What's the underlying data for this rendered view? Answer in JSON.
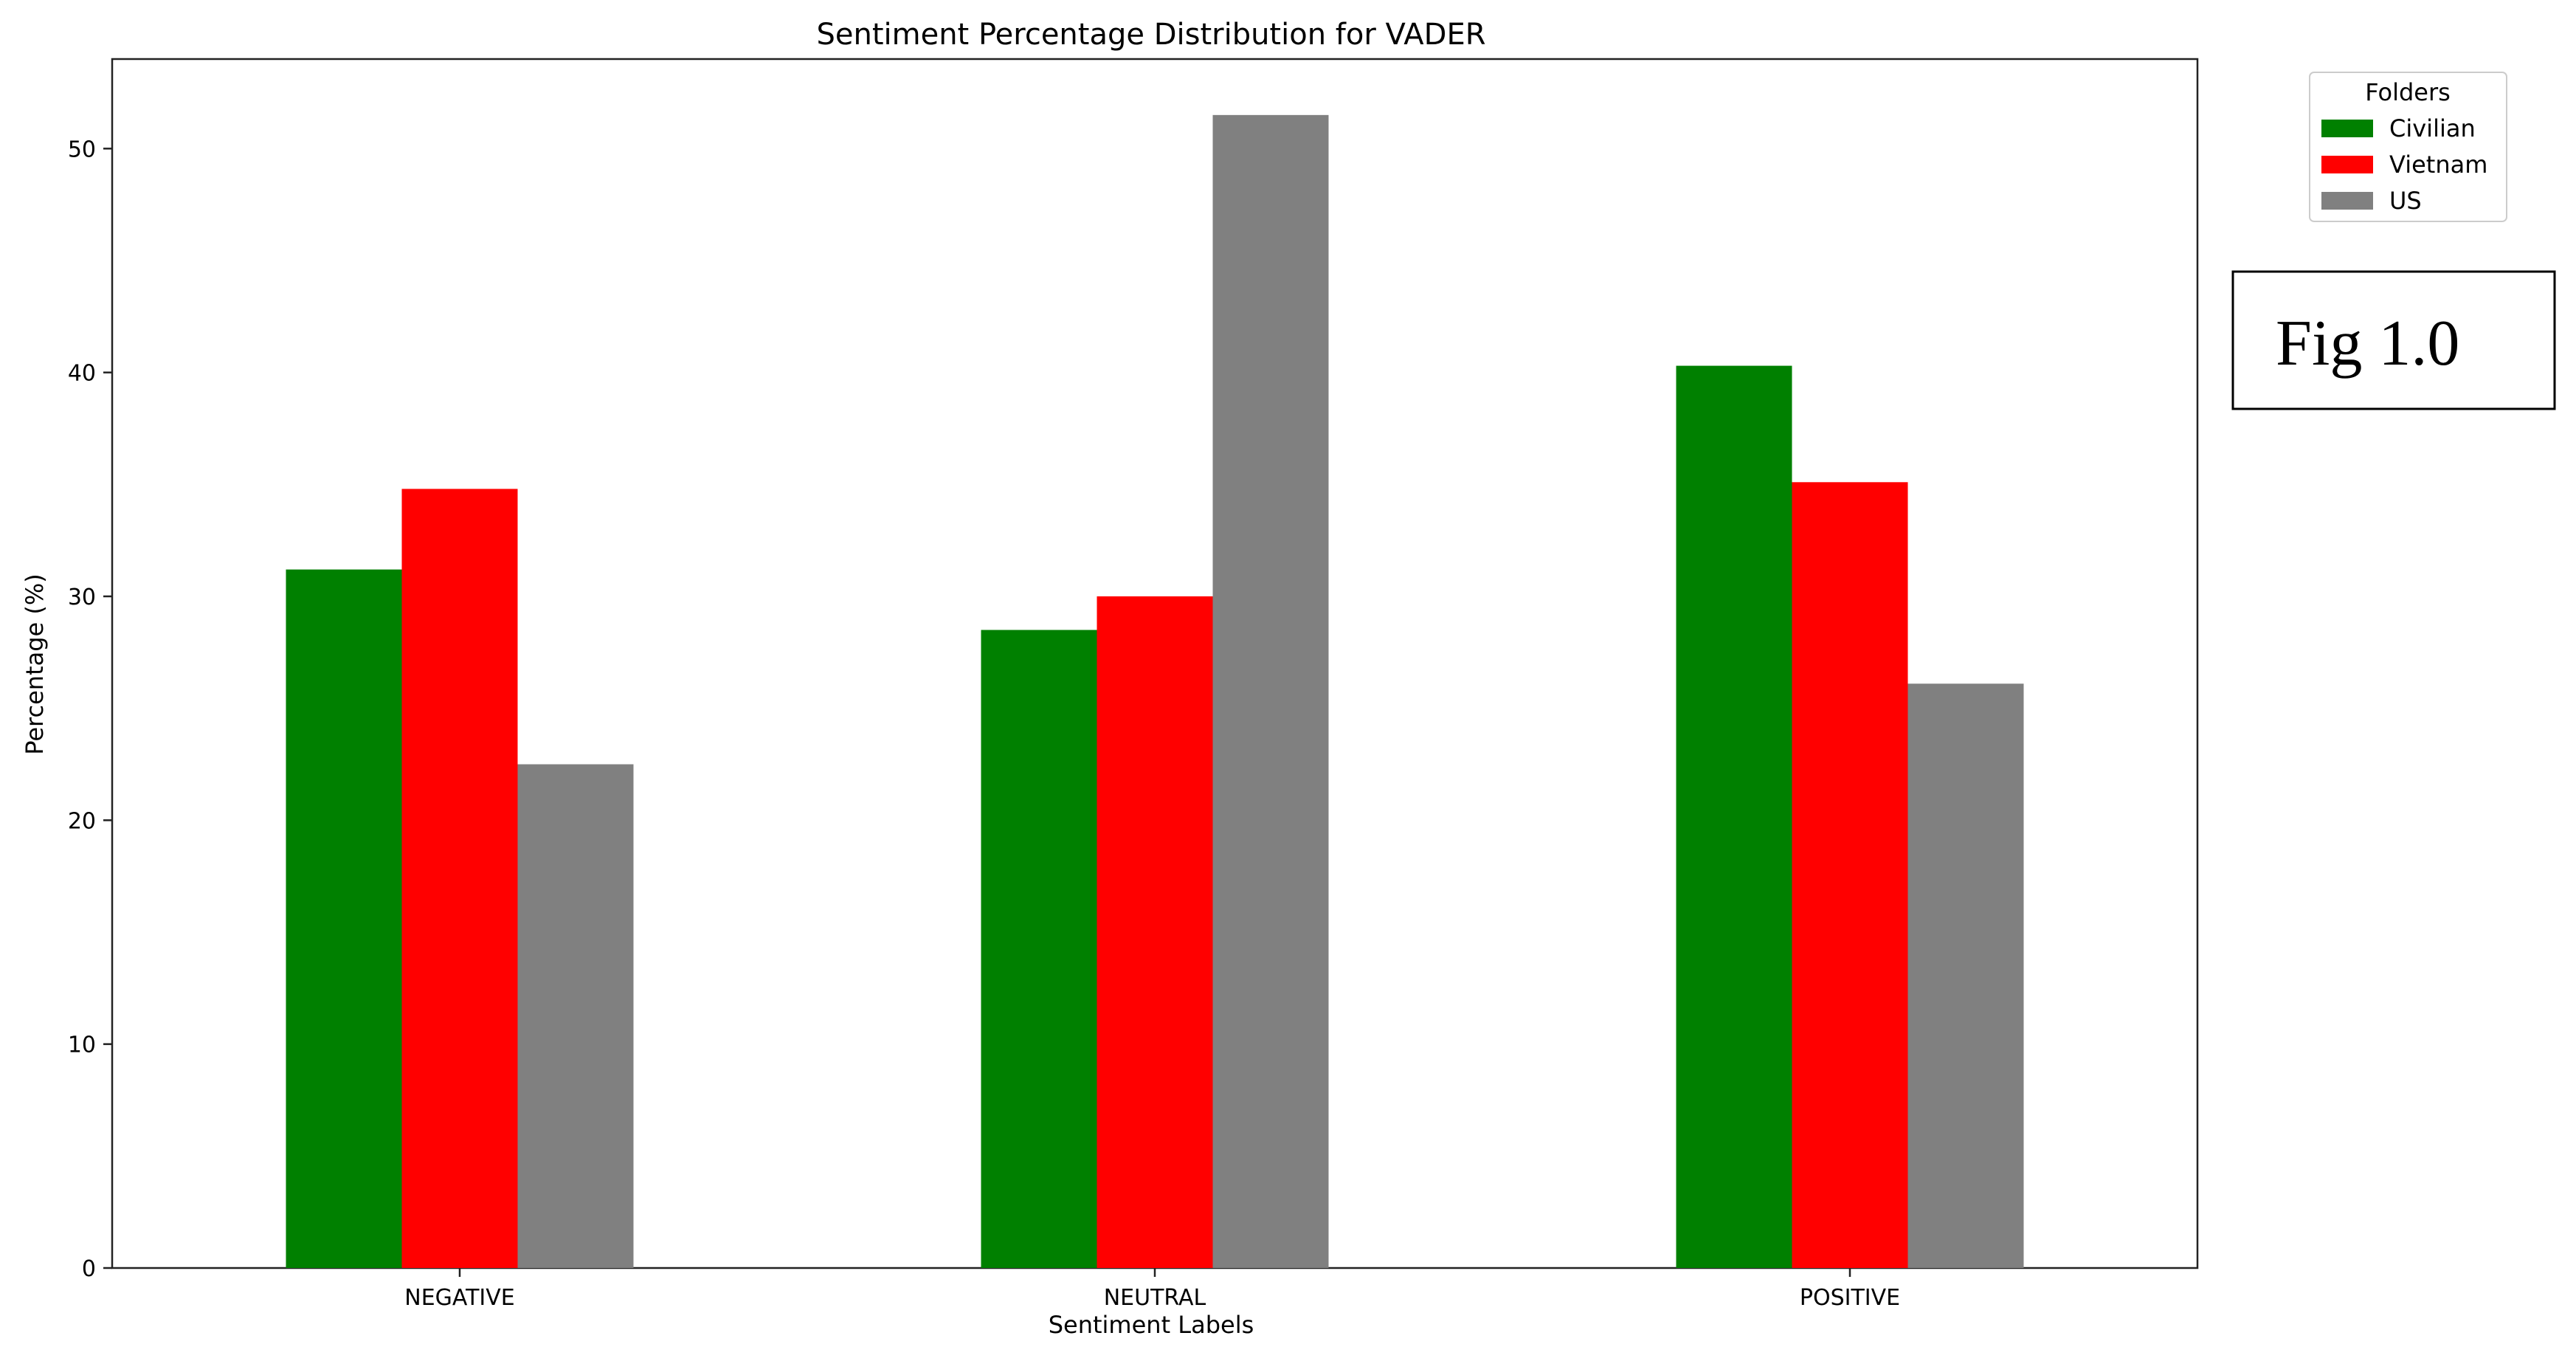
{
  "chart_data": {
    "type": "bar",
    "title": "Sentiment Percentage Distribution for VADER",
    "xlabel": "Sentiment Labels",
    "ylabel": "Percentage (%)",
    "categories": [
      "NEGATIVE",
      "NEUTRAL",
      "POSITIVE"
    ],
    "series": [
      {
        "name": "Civilian",
        "color": "#008000",
        "values": [
          31.2,
          28.5,
          40.3
        ]
      },
      {
        "name": "Vietnam",
        "color": "#ff0000",
        "values": [
          34.8,
          30.0,
          35.1
        ]
      },
      {
        "name": "US",
        "color": "#808080",
        "values": [
          22.5,
          51.5,
          26.1
        ]
      }
    ],
    "ylim": [
      0,
      54
    ],
    "yticks": [
      0,
      10,
      20,
      30,
      40,
      50
    ],
    "grid": false,
    "legend": {
      "title": "Folders",
      "placement": "upper-right outside"
    }
  },
  "annotation": {
    "label": "Fig 1.0"
  }
}
